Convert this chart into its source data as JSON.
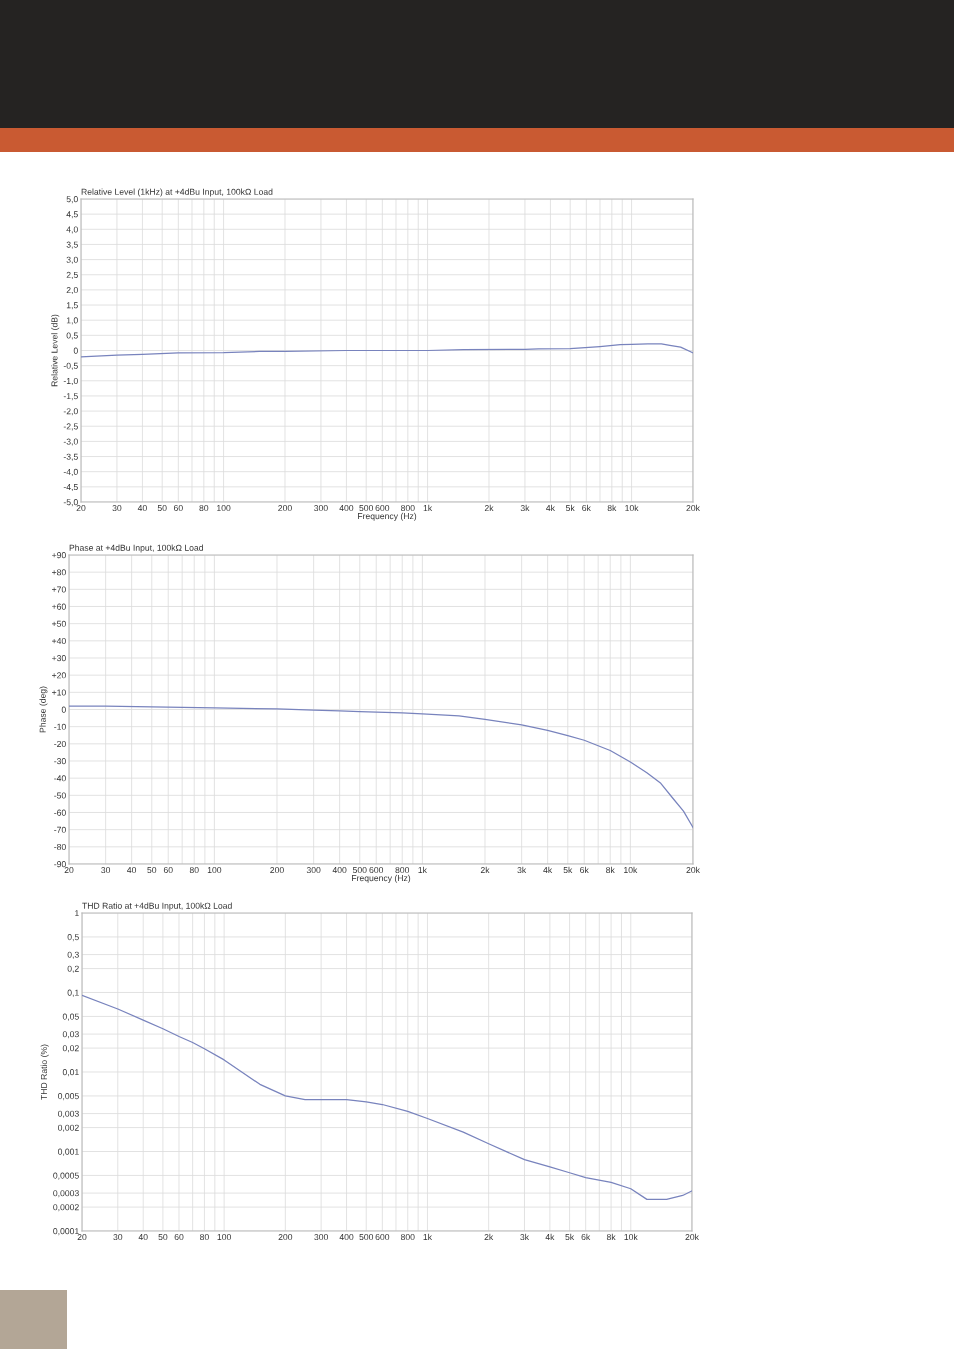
{
  "chart_data": [
    {
      "type": "line",
      "title": "Relative Level (1kHz) at +4dBu Input, 100kΩ Load",
      "xlabel": "Frequency (Hz)",
      "ylabel": "Relative Level (dB)",
      "log": "x",
      "grid": true,
      "x": [
        20,
        30,
        40,
        60,
        100,
        150,
        200,
        400,
        1000,
        1500,
        3000,
        3500,
        5000,
        7000,
        8800,
        10000,
        12000,
        14000,
        15400,
        17400,
        20000
      ],
      "series": [
        {
          "color": "#7883bd",
          "values": [
            -0.21,
            -0.15,
            -0.13,
            -0.08,
            -0.07,
            -0.03,
            -0.03,
            0,
            0,
            0.03,
            0.04,
            0.05,
            0.06,
            0.13,
            0.19,
            0.2,
            0.22,
            0.22,
            0.17,
            0.11,
            -0.08
          ]
        }
      ],
      "xlim": [
        20,
        20000
      ],
      "ylim": [
        -5,
        5
      ],
      "xticks": [
        20,
        30,
        40,
        50,
        60,
        {
          "value": 70,
          "label": null
        },
        80,
        {
          "value": 90,
          "label": null
        },
        100,
        200,
        300,
        400,
        500,
        600,
        {
          "value": 700,
          "label": null
        },
        800,
        {
          "value": 900,
          "label": null
        },
        {
          "value": 1000,
          "label": "1k"
        },
        {
          "value": 2000,
          "label": "2k"
        },
        {
          "value": 3000,
          "label": "3k"
        },
        {
          "value": 4000,
          "label": "4k"
        },
        {
          "value": 5000,
          "label": "5k"
        },
        {
          "value": 6000,
          "label": "6k"
        },
        {
          "value": 7000,
          "label": null
        },
        {
          "value": 8000,
          "label": "8k"
        },
        {
          "value": 9000,
          "label": null
        },
        {
          "value": 10000,
          "label": "10k"
        },
        {
          "value": 20000,
          "label": "20k"
        }
      ],
      "yticks": [
        {
          "value": 5,
          "label": "5,0"
        },
        {
          "value": 4.5,
          "label": "4,5"
        },
        {
          "value": 4,
          "label": "4,0"
        },
        {
          "value": 3.5,
          "label": "3,5"
        },
        {
          "value": 3,
          "label": "3,0"
        },
        {
          "value": 2.5,
          "label": "2,5"
        },
        {
          "value": 2,
          "label": "2,0"
        },
        {
          "value": 1.5,
          "label": "1,5"
        },
        {
          "value": 1,
          "label": "1,0"
        },
        {
          "value": 0.5,
          "label": "0,5"
        },
        0,
        {
          "value": -0.5,
          "label": "-0,5"
        },
        {
          "value": -1,
          "label": "-1,0"
        },
        {
          "value": -1.5,
          "label": "-1,5"
        },
        {
          "value": -2,
          "label": "-2,0"
        },
        {
          "value": -2.5,
          "label": "-2,5"
        },
        {
          "value": -3,
          "label": "-3,0"
        },
        {
          "value": -3.5,
          "label": "-3,5"
        },
        {
          "value": -4,
          "label": "-4,0"
        },
        {
          "value": -4.5,
          "label": "-4,5"
        },
        {
          "value": -5,
          "label": "-5,0"
        }
      ]
    },
    {
      "type": "line",
      "title": "Phase at +4dBu Input, 100kΩ Load",
      "xlabel": "Frequency (Hz)",
      "ylabel": "Phase (deg)",
      "log": "x",
      "grid": true,
      "x": [
        20,
        30,
        50,
        100,
        200,
        300,
        400,
        500,
        800,
        1000,
        1500,
        2000,
        3000,
        4000,
        5000,
        6000,
        8000,
        10000,
        12000,
        14000,
        16000,
        18000,
        20000
      ],
      "series": [
        {
          "color": "#7883bd",
          "values": [
            2,
            2,
            1.5,
            1,
            0.3,
            -0.3,
            -0.8,
            -1.2,
            -2,
            -2.5,
            -3.7,
            -5.7,
            -9,
            -12.2,
            -15.2,
            -17.9,
            -23.9,
            -30.6,
            -36.8,
            -43,
            -51.7,
            -59.2,
            -68.7
          ]
        }
      ],
      "xlim": [
        20,
        20000
      ],
      "ylim": [
        -90,
        90
      ],
      "xticks": [
        20,
        30,
        40,
        50,
        60,
        {
          "value": 70,
          "label": null
        },
        80,
        {
          "value": 90,
          "label": null
        },
        100,
        200,
        300,
        400,
        500,
        600,
        {
          "value": 700,
          "label": null
        },
        800,
        {
          "value": 900,
          "label": null
        },
        {
          "value": 1000,
          "label": "1k"
        },
        {
          "value": 2000,
          "label": "2k"
        },
        {
          "value": 3000,
          "label": "3k"
        },
        {
          "value": 4000,
          "label": "4k"
        },
        {
          "value": 5000,
          "label": "5k"
        },
        {
          "value": 6000,
          "label": "6k"
        },
        {
          "value": 7000,
          "label": null
        },
        {
          "value": 8000,
          "label": "8k"
        },
        {
          "value": 9000,
          "label": null
        },
        {
          "value": 10000,
          "label": "10k"
        },
        {
          "value": 20000,
          "label": "20k"
        }
      ],
      "yticks": [
        {
          "value": 90,
          "label": "+90"
        },
        {
          "value": 80,
          "label": "+80"
        },
        {
          "value": 70,
          "label": "+70"
        },
        {
          "value": 60,
          "label": "+60"
        },
        {
          "value": 50,
          "label": "+50"
        },
        {
          "value": 40,
          "label": "+40"
        },
        {
          "value": 30,
          "label": "+30"
        },
        {
          "value": 20,
          "label": "+20"
        },
        {
          "value": 10,
          "label": "+10"
        },
        0,
        -10,
        -20,
        -30,
        -40,
        -50,
        -60,
        -70,
        -80,
        -90
      ]
    },
    {
      "type": "line",
      "title": "THD Ratio at +4dBu Input, 100kΩ Load",
      "ylabel": "THD Ratio (%)",
      "log": "xy",
      "grid": true,
      "x": [
        20,
        30,
        40,
        50,
        60,
        70,
        80,
        100,
        150,
        200,
        250,
        300,
        400,
        500,
        600,
        800,
        1000,
        1500,
        2000,
        3000,
        4000,
        5000,
        6000,
        8000,
        10000,
        12000,
        15000,
        18000,
        20000
      ],
      "series": [
        {
          "color": "#7883bd",
          "values": [
            0.092,
            0.062,
            0.045,
            0.035,
            0.028,
            0.0235,
            0.0196,
            0.0142,
            0.007,
            0.005,
            0.0045,
            0.0045,
            0.0045,
            0.0042,
            0.0039,
            0.0032,
            0.0026,
            0.00175,
            0.00125,
            0.00079,
            0.00064,
            0.00054,
            0.00047,
            0.00041,
            0.00034,
            0.00025,
            0.00025,
            0.00028,
            0.00032
          ]
        }
      ],
      "xlim": [
        20,
        20000
      ],
      "ylim": [
        0.0001,
        1
      ],
      "xticks": [
        20,
        30,
        40,
        50,
        60,
        {
          "value": 70,
          "label": null
        },
        80,
        {
          "value": 90,
          "label": null
        },
        100,
        200,
        300,
        400,
        500,
        600,
        {
          "value": 700,
          "label": null
        },
        800,
        {
          "value": 900,
          "label": null
        },
        {
          "value": 1000,
          "label": "1k"
        },
        {
          "value": 2000,
          "label": "2k"
        },
        {
          "value": 3000,
          "label": "3k"
        },
        {
          "value": 4000,
          "label": "4k"
        },
        {
          "value": 5000,
          "label": "5k"
        },
        {
          "value": 6000,
          "label": "6k"
        },
        {
          "value": 7000,
          "label": null
        },
        {
          "value": 8000,
          "label": "8k"
        },
        {
          "value": 9000,
          "label": null
        },
        {
          "value": 10000,
          "label": "10k"
        },
        {
          "value": 20000,
          "label": "20k"
        }
      ],
      "yticks": [
        1,
        {
          "value": 0.5,
          "label": "0,5"
        },
        {
          "value": 0.3,
          "label": "0,3"
        },
        {
          "value": 0.2,
          "label": "0,2"
        },
        {
          "value": 0.1,
          "label": "0,1"
        },
        {
          "value": 0.05,
          "label": "0,05"
        },
        {
          "value": 0.03,
          "label": "0,03"
        },
        {
          "value": 0.02,
          "label": "0,02"
        },
        {
          "value": 0.01,
          "label": "0,01"
        },
        {
          "value": 0.005,
          "label": "0,005"
        },
        {
          "value": 0.003,
          "label": "0,003"
        },
        {
          "value": 0.002,
          "label": "0,002"
        },
        {
          "value": 0.001,
          "label": "0,001"
        },
        {
          "value": 0.0005,
          "label": "0,0005"
        },
        {
          "value": 0.0003,
          "label": "0,0003"
        },
        {
          "value": 0.0002,
          "label": "0,0002"
        },
        {
          "value": 0.0001,
          "label": "0,0001"
        }
      ]
    }
  ]
}
